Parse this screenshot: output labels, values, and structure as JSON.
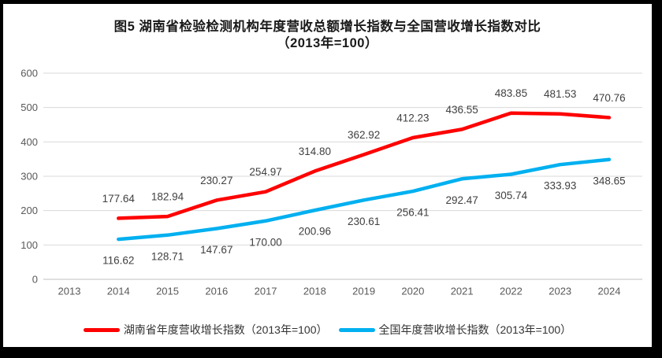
{
  "frame": {
    "background": "#ffffff",
    "border_color": "#000000"
  },
  "chart_data": {
    "type": "line",
    "title_line1": "图5 湖南省检验检测机构年度营收总额增长指数与全国营收增长指数对比",
    "title_line2": "（2013年=100）",
    "categories": [
      "2013",
      "2014",
      "2015",
      "2016",
      "2017",
      "2018",
      "2019",
      "2020",
      "2021",
      "2022",
      "2023",
      "2024"
    ],
    "series": [
      {
        "name": "湖南省年度营收增长指数（2013年=100）",
        "color": "#ff0000",
        "values": [
          null,
          177.64,
          182.94,
          230.27,
          254.97,
          314.8,
          362.92,
          412.23,
          436.55,
          483.85,
          481.53,
          470.76
        ]
      },
      {
        "name": "全国年度营收增长指数（2013年=100）",
        "color": "#00b0f0",
        "values": [
          null,
          116.62,
          128.71,
          147.67,
          170.0,
          200.96,
          230.61,
          256.41,
          292.47,
          305.74,
          333.93,
          348.65
        ]
      }
    ],
    "xlabel": "",
    "ylabel": "",
    "ylim": [
      0,
      600
    ],
    "ytick_interval": 100,
    "yticks": [
      "0",
      "100",
      "200",
      "300",
      "400",
      "500",
      "600"
    ],
    "grid": true,
    "data_labels": true,
    "legend_position": "bottom",
    "gridline_color": "#d9d9d9",
    "axis_line_color": "#bfbfbf",
    "axis_label_color": "#595959",
    "data_label_color": "#404040"
  }
}
